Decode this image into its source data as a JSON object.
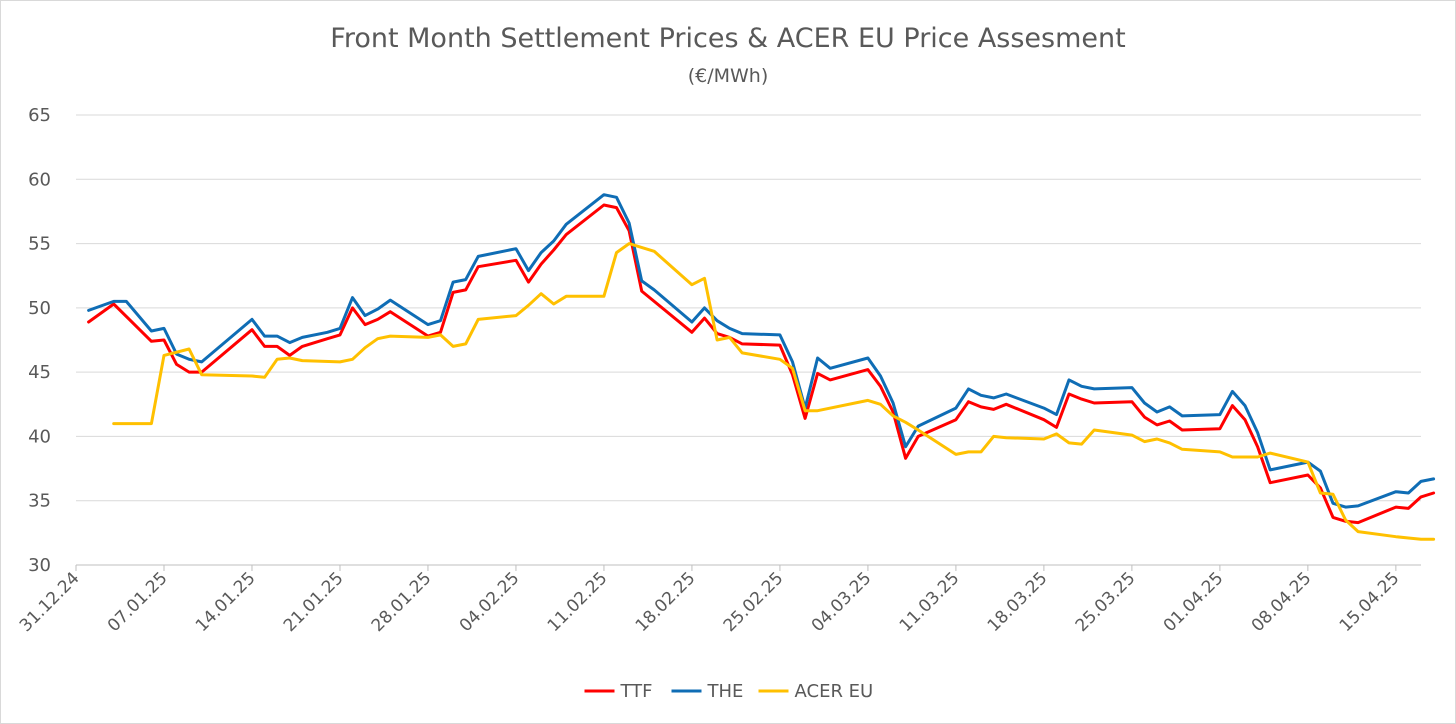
{
  "chart_data": {
    "type": "line",
    "title": "Front Month Settlement Prices & ACER EU Price Assesment",
    "subtitle": "(€/MWh)",
    "xlabel": "",
    "ylabel": "",
    "ylim": [
      30,
      65
    ],
    "yticks": [
      30,
      35,
      40,
      45,
      50,
      55,
      60,
      65
    ],
    "x_range": [
      "2024-12-31",
      "2025-04-17"
    ],
    "xtick_labels": [
      "31.12.24",
      "07.01.25",
      "14.01.25",
      "21.01.25",
      "28.01.25",
      "04.02.25",
      "11.02.25",
      "18.02.25",
      "25.02.25",
      "04.03.25",
      "11.03.25",
      "18.03.25",
      "25.03.25",
      "01.04.25",
      "08.04.25",
      "15.04.25"
    ],
    "xtick_dates": [
      "2024-12-31",
      "2025-01-07",
      "2025-01-14",
      "2025-01-21",
      "2025-01-28",
      "2025-02-04",
      "2025-02-11",
      "2025-02-18",
      "2025-02-25",
      "2025-03-04",
      "2025-03-11",
      "2025-03-18",
      "2025-03-25",
      "2025-04-01",
      "2025-04-08",
      "2025-04-15"
    ],
    "grid": true,
    "legend_position": "bottom",
    "series": [
      {
        "name": "TTF",
        "color": "#ff0000",
        "points": [
          [
            "2025-01-01",
            48.9
          ],
          [
            "2025-01-03",
            50.3
          ],
          [
            "2025-01-06",
            47.4
          ],
          [
            "2025-01-07",
            47.5
          ],
          [
            "2025-01-08",
            45.6
          ],
          [
            "2025-01-09",
            45.0
          ],
          [
            "2025-01-10",
            45.0
          ],
          [
            "2025-01-14",
            48.3
          ],
          [
            "2025-01-15",
            47.0
          ],
          [
            "2025-01-16",
            47.0
          ],
          [
            "2025-01-17",
            46.3
          ],
          [
            "2025-01-18",
            47.0
          ],
          [
            "2025-01-20",
            47.6
          ],
          [
            "2025-01-21",
            47.9
          ],
          [
            "2025-01-22",
            50.0
          ],
          [
            "2025-01-23",
            48.7
          ],
          [
            "2025-01-24",
            49.1
          ],
          [
            "2025-01-25",
            49.7
          ],
          [
            "2025-01-28",
            47.8
          ],
          [
            "2025-01-29",
            48.1
          ],
          [
            "2025-01-30",
            51.2
          ],
          [
            "2025-01-31",
            51.4
          ],
          [
            "2025-02-01",
            53.2
          ],
          [
            "2025-02-04",
            53.7
          ],
          [
            "2025-02-05",
            52.0
          ],
          [
            "2025-02-06",
            53.4
          ],
          [
            "2025-02-07",
            54.5
          ],
          [
            "2025-02-08",
            55.7
          ],
          [
            "2025-02-11",
            58.0
          ],
          [
            "2025-02-12",
            57.8
          ],
          [
            "2025-02-13",
            56.0
          ],
          [
            "2025-02-14",
            51.3
          ],
          [
            "2025-02-15",
            50.5
          ],
          [
            "2025-02-18",
            48.1
          ],
          [
            "2025-02-19",
            49.2
          ],
          [
            "2025-02-20",
            48.0
          ],
          [
            "2025-02-21",
            47.7
          ],
          [
            "2025-02-22",
            47.2
          ],
          [
            "2025-02-25",
            47.1
          ],
          [
            "2025-02-26",
            44.8
          ],
          [
            "2025-02-27",
            41.4
          ],
          [
            "2025-02-28",
            44.9
          ],
          [
            "2025-03-01",
            44.4
          ],
          [
            "2025-03-04",
            45.2
          ],
          [
            "2025-03-05",
            43.9
          ],
          [
            "2025-03-06",
            41.9
          ],
          [
            "2025-03-07",
            38.3
          ],
          [
            "2025-03-08",
            40.0
          ],
          [
            "2025-03-11",
            41.3
          ],
          [
            "2025-03-12",
            42.7
          ],
          [
            "2025-03-13",
            42.3
          ],
          [
            "2025-03-14",
            42.1
          ],
          [
            "2025-03-15",
            42.5
          ],
          [
            "2025-03-18",
            41.3
          ],
          [
            "2025-03-19",
            40.7
          ],
          [
            "2025-03-20",
            43.3
          ],
          [
            "2025-03-21",
            42.9
          ],
          [
            "2025-03-22",
            42.6
          ],
          [
            "2025-03-25",
            42.7
          ],
          [
            "2025-03-26",
            41.5
          ],
          [
            "2025-03-27",
            40.9
          ],
          [
            "2025-03-28",
            41.2
          ],
          [
            "2025-03-29",
            40.5
          ],
          [
            "2025-04-01",
            40.6
          ],
          [
            "2025-04-02",
            42.4
          ],
          [
            "2025-04-03",
            41.3
          ],
          [
            "2025-04-04",
            39.2
          ],
          [
            "2025-04-05",
            36.4
          ],
          [
            "2025-04-08",
            37.0
          ],
          [
            "2025-04-09",
            36.0
          ],
          [
            "2025-04-10",
            33.7
          ],
          [
            "2025-04-11",
            33.4
          ],
          [
            "2025-04-12",
            33.3
          ],
          [
            "2025-04-15",
            34.5
          ],
          [
            "2025-04-16",
            34.4
          ],
          [
            "2025-04-17",
            35.3
          ],
          [
            "2025-04-18",
            35.6
          ]
        ]
      },
      {
        "name": "THE",
        "color": "#0f6db5",
        "points": [
          [
            "2025-01-01",
            49.8
          ],
          [
            "2025-01-03",
            50.5
          ],
          [
            "2025-01-04",
            50.5
          ],
          [
            "2025-01-06",
            48.2
          ],
          [
            "2025-01-07",
            48.4
          ],
          [
            "2025-01-08",
            46.4
          ],
          [
            "2025-01-09",
            46.0
          ],
          [
            "2025-01-10",
            45.8
          ],
          [
            "2025-01-14",
            49.1
          ],
          [
            "2025-01-15",
            47.8
          ],
          [
            "2025-01-16",
            47.8
          ],
          [
            "2025-01-17",
            47.3
          ],
          [
            "2025-01-18",
            47.7
          ],
          [
            "2025-01-20",
            48.1
          ],
          [
            "2025-01-21",
            48.4
          ],
          [
            "2025-01-22",
            50.8
          ],
          [
            "2025-01-23",
            49.4
          ],
          [
            "2025-01-24",
            49.9
          ],
          [
            "2025-01-25",
            50.6
          ],
          [
            "2025-01-28",
            48.7
          ],
          [
            "2025-01-29",
            49.0
          ],
          [
            "2025-01-30",
            52.0
          ],
          [
            "2025-01-31",
            52.2
          ],
          [
            "2025-02-01",
            54.0
          ],
          [
            "2025-02-04",
            54.6
          ],
          [
            "2025-02-05",
            52.9
          ],
          [
            "2025-02-06",
            54.3
          ],
          [
            "2025-02-07",
            55.2
          ],
          [
            "2025-02-08",
            56.5
          ],
          [
            "2025-02-11",
            58.8
          ],
          [
            "2025-02-12",
            58.6
          ],
          [
            "2025-02-13",
            56.6
          ],
          [
            "2025-02-14",
            52.1
          ],
          [
            "2025-02-15",
            51.4
          ],
          [
            "2025-02-18",
            48.9
          ],
          [
            "2025-02-19",
            50.0
          ],
          [
            "2025-02-20",
            49.0
          ],
          [
            "2025-02-21",
            48.4
          ],
          [
            "2025-02-22",
            48.0
          ],
          [
            "2025-02-25",
            47.9
          ],
          [
            "2025-02-26",
            45.8
          ],
          [
            "2025-02-27",
            42.2
          ],
          [
            "2025-02-28",
            46.1
          ],
          [
            "2025-03-01",
            45.3
          ],
          [
            "2025-03-04",
            46.1
          ],
          [
            "2025-03-05",
            44.7
          ],
          [
            "2025-03-06",
            42.6
          ],
          [
            "2025-03-07",
            39.2
          ],
          [
            "2025-03-08",
            40.8
          ],
          [
            "2025-03-11",
            42.2
          ],
          [
            "2025-03-12",
            43.7
          ],
          [
            "2025-03-13",
            43.2
          ],
          [
            "2025-03-14",
            43.0
          ],
          [
            "2025-03-15",
            43.3
          ],
          [
            "2025-03-18",
            42.2
          ],
          [
            "2025-03-19",
            41.7
          ],
          [
            "2025-03-20",
            44.4
          ],
          [
            "2025-03-21",
            43.9
          ],
          [
            "2025-03-22",
            43.7
          ],
          [
            "2025-03-25",
            43.8
          ],
          [
            "2025-03-26",
            42.6
          ],
          [
            "2025-03-27",
            41.9
          ],
          [
            "2025-03-28",
            42.3
          ],
          [
            "2025-03-29",
            41.6
          ],
          [
            "2025-04-01",
            41.7
          ],
          [
            "2025-04-02",
            43.5
          ],
          [
            "2025-04-03",
            42.4
          ],
          [
            "2025-04-04",
            40.3
          ],
          [
            "2025-04-05",
            37.4
          ],
          [
            "2025-04-08",
            38.0
          ],
          [
            "2025-04-09",
            37.3
          ],
          [
            "2025-04-10",
            34.8
          ],
          [
            "2025-04-11",
            34.5
          ],
          [
            "2025-04-12",
            34.6
          ],
          [
            "2025-04-15",
            35.7
          ],
          [
            "2025-04-16",
            35.6
          ],
          [
            "2025-04-17",
            36.5
          ],
          [
            "2025-04-18",
            36.7
          ]
        ]
      },
      {
        "name": "ACER EU",
        "color": "#ffc000",
        "points": [
          [
            "2025-01-03",
            41.0
          ],
          [
            "2025-01-06",
            41.0
          ],
          [
            "2025-01-07",
            46.3
          ],
          [
            "2025-01-09",
            46.8
          ],
          [
            "2025-01-10",
            44.8
          ],
          [
            "2025-01-14",
            44.7
          ],
          [
            "2025-01-15",
            44.6
          ],
          [
            "2025-01-16",
            46.0
          ],
          [
            "2025-01-17",
            46.1
          ],
          [
            "2025-01-18",
            45.9
          ],
          [
            "2025-01-21",
            45.8
          ],
          [
            "2025-01-22",
            46.0
          ],
          [
            "2025-01-23",
            46.9
          ],
          [
            "2025-01-24",
            47.6
          ],
          [
            "2025-01-25",
            47.8
          ],
          [
            "2025-01-28",
            47.7
          ],
          [
            "2025-01-29",
            47.9
          ],
          [
            "2025-01-30",
            47.0
          ],
          [
            "2025-01-31",
            47.2
          ],
          [
            "2025-02-01",
            49.1
          ],
          [
            "2025-02-04",
            49.4
          ],
          [
            "2025-02-05",
            50.2
          ],
          [
            "2025-02-06",
            51.1
          ],
          [
            "2025-02-07",
            50.3
          ],
          [
            "2025-02-08",
            50.9
          ],
          [
            "2025-02-11",
            50.9
          ],
          [
            "2025-02-12",
            54.3
          ],
          [
            "2025-02-13",
            55.0
          ],
          [
            "2025-02-15",
            54.4
          ],
          [
            "2025-02-18",
            51.8
          ],
          [
            "2025-02-19",
            52.3
          ],
          [
            "2025-02-20",
            47.5
          ],
          [
            "2025-02-21",
            47.7
          ],
          [
            "2025-02-22",
            46.5
          ],
          [
            "2025-02-25",
            46.0
          ],
          [
            "2025-02-26",
            45.3
          ],
          [
            "2025-02-27",
            42.0
          ],
          [
            "2025-02-28",
            42.0
          ],
          [
            "2025-03-04",
            42.8
          ],
          [
            "2025-03-05",
            42.5
          ],
          [
            "2025-03-06",
            41.6
          ],
          [
            "2025-03-07",
            41.1
          ],
          [
            "2025-03-08",
            40.5
          ],
          [
            "2025-03-11",
            38.6
          ],
          [
            "2025-03-12",
            38.8
          ],
          [
            "2025-03-13",
            38.8
          ],
          [
            "2025-03-14",
            40.0
          ],
          [
            "2025-03-15",
            39.9
          ],
          [
            "2025-03-18",
            39.8
          ],
          [
            "2025-03-19",
            40.2
          ],
          [
            "2025-03-20",
            39.5
          ],
          [
            "2025-03-21",
            39.4
          ],
          [
            "2025-03-22",
            40.5
          ],
          [
            "2025-03-25",
            40.1
          ],
          [
            "2025-03-26",
            39.6
          ],
          [
            "2025-03-27",
            39.8
          ],
          [
            "2025-03-28",
            39.5
          ],
          [
            "2025-03-29",
            39.0
          ],
          [
            "2025-04-01",
            38.8
          ],
          [
            "2025-04-02",
            38.4
          ],
          [
            "2025-04-04",
            38.4
          ],
          [
            "2025-04-05",
            38.7
          ],
          [
            "2025-04-08",
            38.0
          ],
          [
            "2025-04-09",
            35.6
          ],
          [
            "2025-04-10",
            35.5
          ],
          [
            "2025-04-11",
            33.5
          ],
          [
            "2025-04-12",
            32.6
          ],
          [
            "2025-04-15",
            32.2
          ],
          [
            "2025-04-16",
            32.1
          ],
          [
            "2025-04-17",
            32.0
          ],
          [
            "2025-04-18",
            32.0
          ]
        ]
      }
    ]
  }
}
